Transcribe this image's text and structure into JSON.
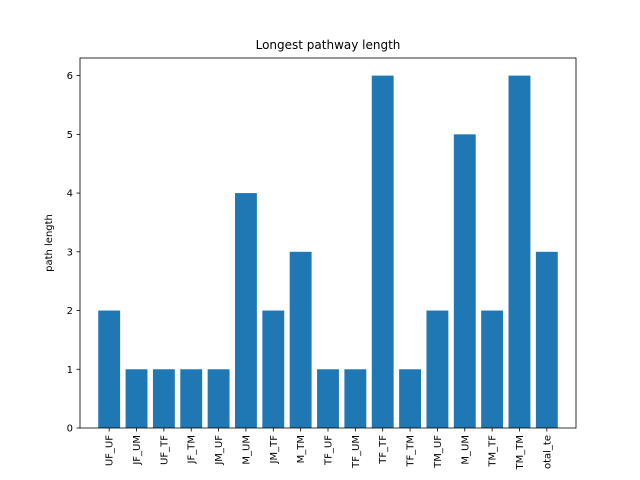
{
  "chart_data": {
    "type": "bar",
    "title": "Longest pathway length",
    "xlabel": "",
    "ylabel": "path length",
    "categories": [
      "UF_UF",
      "JF_UM",
      "UF_TF",
      "JF_TM",
      "JM_UF",
      "M_UM",
      "JM_TF",
      "M_TM",
      "TF_UF",
      "TF_UM",
      "TF_TF",
      "TF_TM",
      "TM_UF",
      "M_UM",
      "TM_TF",
      "TM_TM",
      "otal_te"
    ],
    "values": [
      2,
      1,
      1,
      1,
      1,
      4,
      2,
      3,
      1,
      1,
      6,
      1,
      2,
      5,
      2,
      6,
      3
    ],
    "yticks": [
      0,
      1,
      2,
      3,
      4,
      5,
      6
    ],
    "ylim": [
      0,
      6.3
    ],
    "bar_color": "#1f77b4",
    "grid": false,
    "legend": "none"
  }
}
